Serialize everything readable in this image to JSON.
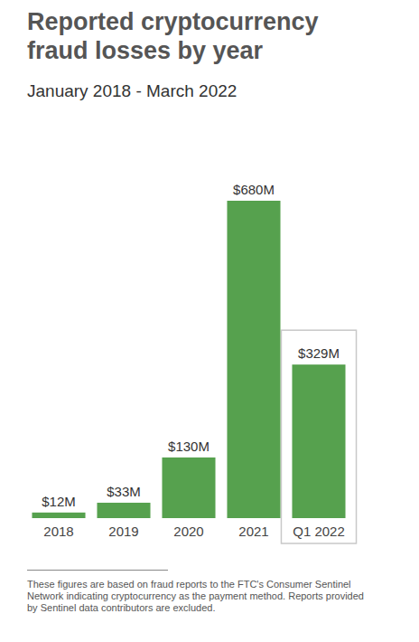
{
  "chart_data": {
    "type": "bar",
    "title": "Reported cryptocurrency fraud losses by year",
    "subtitle": "January 2018 - March 2022",
    "note": "These figures are based on fraud reports to the FTC's Consumer Sentinel Network indicating cryptocurrency as the payment method. Reports provided by Sentinel data contributors are excluded.",
    "categories": [
      "2018",
      "2019",
      "2020",
      "2021",
      "Q1 2022"
    ],
    "values": [
      12,
      33,
      130,
      680,
      329
    ],
    "value_labels": [
      "$12M",
      "$33M",
      "$130M",
      "$680M",
      "$329M"
    ],
    "color": "#56a14e",
    "ylim": [
      0,
      680
    ],
    "grid": false,
    "data_labels": true,
    "tick_labels": "x"
  }
}
